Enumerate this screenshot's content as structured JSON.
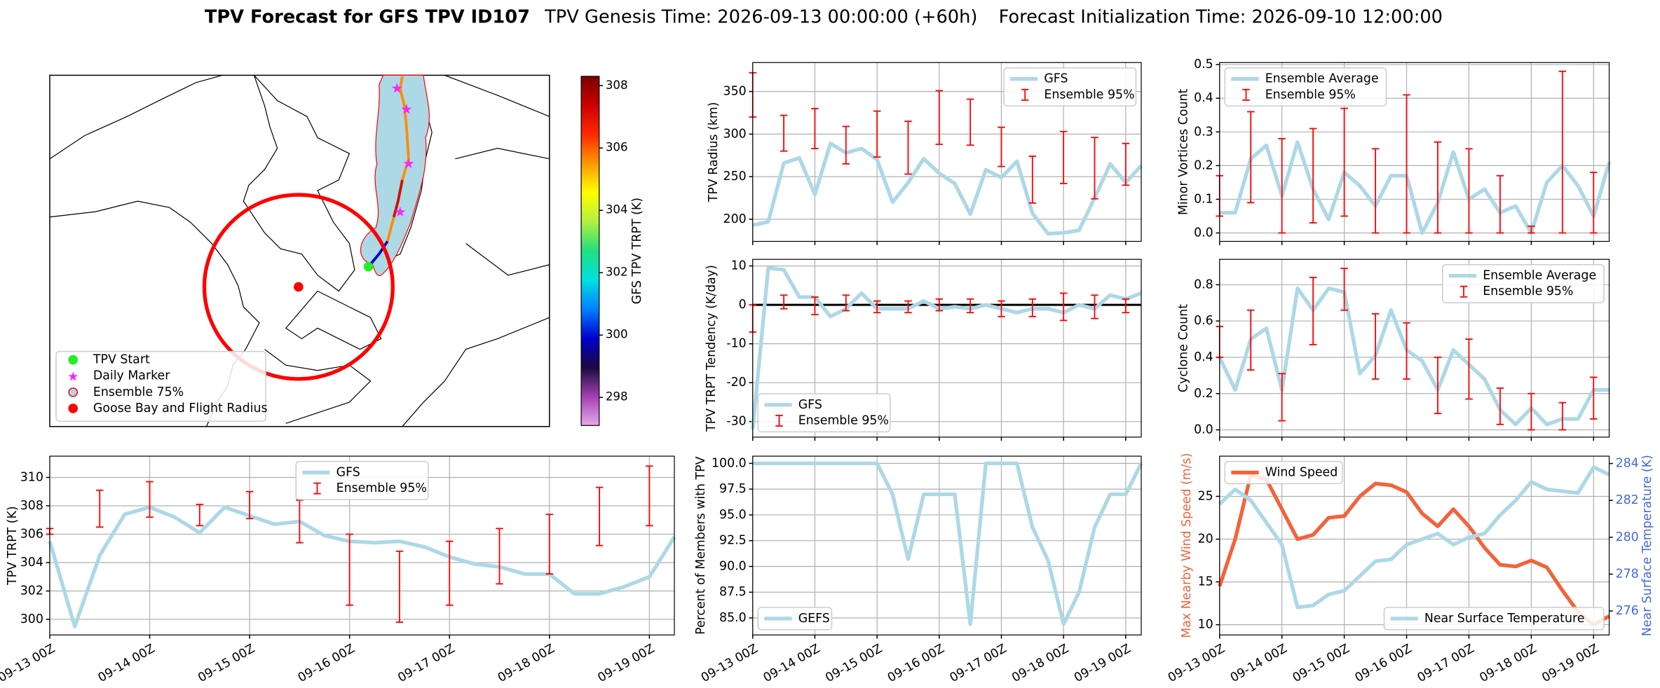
{
  "suptitle": [
    "TPV Forecast for GFS TPV ID107",
    "TPV Genesis Time: 2026-09-13 00:00:00 (+60h)",
    "Forecast Initialization Time: 2026-09-10 12:00:00"
  ],
  "chart_data": [
    {
      "type": "map",
      "legend": [
        {
          "name": "TPV Start",
          "color": "#22ee22",
          "marker": "circle"
        },
        {
          "name": "Daily Marker",
          "color": "#ff22ff",
          "marker": "star"
        },
        {
          "name": "Ensemble 75%",
          "color": "#add8e6",
          "marker": "ring"
        },
        {
          "name": "Goose Bay and Flight Radius",
          "color": "red",
          "marker": "circle"
        }
      ],
      "colorbar": {
        "label": "GFS TPV TRPT (K)",
        "lim": [
          297.1,
          308.3
        ],
        "ticks": [
          298,
          300,
          302,
          304,
          306,
          308
        ],
        "colormap": [
          "#e9a8ec",
          "#a040b0",
          "#1a0a40",
          "#0000cc",
          "#0080ff",
          "#00e0e0",
          "#20e080",
          "#b0f040",
          "#ffff00",
          "#ff9900",
          "#ff2a00",
          "#cc0000",
          "#7a0000"
        ]
      }
    },
    {
      "type": "line",
      "ylabel": "TPV TRPT (K)",
      "grid": true,
      "legend": "upper center",
      "show_xticklabels": true,
      "x": [
        "09-13 00Z",
        "09-13 06Z",
        "09-13 12Z",
        "09-13 18Z",
        "09-14 00Z",
        "09-14 06Z",
        "09-14 12Z",
        "09-14 18Z",
        "09-15 00Z",
        "09-15 06Z",
        "09-15 12Z",
        "09-15 18Z",
        "09-16 00Z",
        "09-16 06Z",
        "09-16 12Z",
        "09-16 18Z",
        "09-17 00Z",
        "09-17 06Z",
        "09-17 12Z",
        "09-17 18Z",
        "09-18 00Z",
        "09-18 06Z",
        "09-18 12Z",
        "09-18 18Z",
        "09-19 00Z",
        "09-19 06Z"
      ],
      "xticks": [
        "09-13 00Z",
        "09-14 00Z",
        "09-15 00Z",
        "09-16 00Z",
        "09-17 00Z",
        "09-18 00Z",
        "09-19 00Z"
      ],
      "ylim": [
        298.9,
        311.5
      ],
      "yticks": [
        300,
        302,
        304,
        306,
        308,
        310
      ],
      "series": [
        {
          "name": "GFS",
          "color": "#add8e6",
          "values": [
            305.5,
            299.5,
            304.5,
            307.4,
            307.9,
            307.2,
            306.1,
            307.9,
            307.3,
            306.7,
            306.9,
            305.9,
            305.5,
            305.4,
            305.5,
            305.1,
            304.4,
            303.9,
            303.7,
            303.2,
            303.2,
            301.8,
            301.8,
            302.3,
            303.0,
            305.8
          ]
        },
        {
          "name": "Ensemble 95%",
          "color": "red",
          "type": "errorbar",
          "low": [
            306.0,
            null,
            306.5,
            null,
            307.2,
            null,
            306.6,
            null,
            307.1,
            null,
            305.4,
            null,
            301.0,
            null,
            299.8,
            null,
            301.0,
            null,
            302.5,
            null,
            303.2,
            null,
            305.2,
            null,
            306.6,
            null
          ],
          "high": [
            306.4,
            null,
            309.1,
            null,
            309.7,
            null,
            308.1,
            null,
            309.0,
            null,
            308.4,
            null,
            306.0,
            null,
            304.8,
            null,
            305.5,
            null,
            306.4,
            null,
            307.4,
            null,
            309.3,
            null,
            310.8,
            null
          ]
        }
      ]
    },
    {
      "type": "line",
      "ylabel": "TPV Radius (km)",
      "grid": true,
      "legend": "upper right",
      "show_xticklabels": false,
      "x": [
        "09-13 00Z",
        "09-13 06Z",
        "09-13 12Z",
        "09-13 18Z",
        "09-14 00Z",
        "09-14 06Z",
        "09-14 12Z",
        "09-14 18Z",
        "09-15 00Z",
        "09-15 06Z",
        "09-15 12Z",
        "09-15 18Z",
        "09-16 00Z",
        "09-16 06Z",
        "09-16 12Z",
        "09-16 18Z",
        "09-17 00Z",
        "09-17 06Z",
        "09-17 12Z",
        "09-17 18Z",
        "09-18 00Z",
        "09-18 06Z",
        "09-18 12Z",
        "09-18 18Z",
        "09-19 00Z",
        "09-19 06Z"
      ],
      "xticks": [
        "09-13 00Z",
        "09-14 00Z",
        "09-15 00Z",
        "09-16 00Z",
        "09-17 00Z",
        "09-18 00Z",
        "09-19 00Z"
      ],
      "ylim": [
        174,
        384
      ],
      "yticks": [
        200,
        250,
        300,
        350
      ],
      "series": [
        {
          "name": "GFS",
          "color": "#add8e6",
          "values": [
            193,
            197,
            266,
            272,
            229,
            289,
            278,
            283,
            270,
            220,
            243,
            271,
            254,
            242,
            206,
            258,
            249,
            268,
            207,
            183,
            184,
            187,
            225,
            265,
            243,
            263
          ]
        },
        {
          "name": "Ensemble 95%",
          "color": "red",
          "type": "errorbar",
          "low": [
            320,
            null,
            280,
            null,
            283,
            null,
            265,
            null,
            273,
            null,
            253,
            null,
            288,
            null,
            287,
            null,
            262,
            null,
            219,
            null,
            242,
            null,
            224,
            null,
            240,
            null
          ],
          "high": [
            372,
            null,
            322,
            null,
            330,
            null,
            309,
            null,
            327,
            null,
            315,
            null,
            351,
            null,
            341,
            null,
            308,
            null,
            274,
            null,
            303,
            null,
            296,
            null,
            289,
            null
          ]
        }
      ]
    },
    {
      "type": "line",
      "ylabel": "TPV TRPT Tendency (K/day)",
      "grid": true,
      "legend": "lower left",
      "show_xticklabels": false,
      "hline": 0,
      "x": [
        "09-13 00Z",
        "09-13 06Z",
        "09-13 12Z",
        "09-13 18Z",
        "09-14 00Z",
        "09-14 06Z",
        "09-14 12Z",
        "09-14 18Z",
        "09-15 00Z",
        "09-15 06Z",
        "09-15 12Z",
        "09-15 18Z",
        "09-16 00Z",
        "09-16 06Z",
        "09-16 12Z",
        "09-16 18Z",
        "09-17 00Z",
        "09-17 06Z",
        "09-17 12Z",
        "09-17 18Z",
        "09-18 00Z",
        "09-18 06Z",
        "09-18 12Z",
        "09-18 18Z",
        "09-19 00Z",
        "09-19 06Z"
      ],
      "xticks": [
        "09-13 00Z",
        "09-14 00Z",
        "09-15 00Z",
        "09-16 00Z",
        "09-17 00Z",
        "09-18 00Z",
        "09-19 00Z"
      ],
      "ylim": [
        -34,
        11.7
      ],
      "yticks": [
        -30,
        -20,
        -10,
        0,
        10
      ],
      "series": [
        {
          "name": "GFS",
          "color": "#add8e6",
          "values": [
            -32,
            9.5,
            9,
            2,
            2,
            -3,
            -1,
            3,
            -1,
            -1,
            -1,
            1,
            -1,
            -0.5,
            -1,
            0,
            -1,
            -2,
            -1,
            -1,
            -2,
            0,
            -1,
            2.5,
            1.5,
            3
          ]
        },
        {
          "name": "Ensemble 95%",
          "color": "red",
          "type": "errorbar",
          "low": [
            -7,
            null,
            -1,
            null,
            -2.5,
            null,
            -1.5,
            null,
            -2,
            null,
            -2,
            null,
            -1.5,
            null,
            -2,
            null,
            -3,
            null,
            -3,
            null,
            -4,
            null,
            -3.5,
            null,
            -2,
            null
          ],
          "high": [
            0,
            null,
            2.5,
            null,
            2,
            null,
            2.5,
            null,
            1,
            null,
            1,
            null,
            1.5,
            null,
            1.5,
            null,
            1,
            null,
            1.5,
            null,
            3,
            null,
            2.5,
            null,
            1.5,
            null
          ]
        }
      ]
    },
    {
      "type": "line",
      "ylabel": "Percent of Members with TPV",
      "grid": true,
      "legend": "lower left",
      "show_xticklabels": true,
      "x": [
        "09-13 00Z",
        "09-13 06Z",
        "09-13 12Z",
        "09-13 18Z",
        "09-14 00Z",
        "09-14 06Z",
        "09-14 12Z",
        "09-14 18Z",
        "09-15 00Z",
        "09-15 06Z",
        "09-15 12Z",
        "09-15 18Z",
        "09-16 00Z",
        "09-16 06Z",
        "09-16 12Z",
        "09-16 18Z",
        "09-17 00Z",
        "09-17 06Z",
        "09-17 12Z",
        "09-17 18Z",
        "09-18 00Z",
        "09-18 06Z",
        "09-18 12Z",
        "09-18 18Z",
        "09-19 00Z",
        "09-19 06Z"
      ],
      "xticks": [
        "09-13 00Z",
        "09-14 00Z",
        "09-15 00Z",
        "09-16 00Z",
        "09-17 00Z",
        "09-18 00Z",
        "09-19 00Z"
      ],
      "ylim": [
        83.35,
        100.7
      ],
      "yticks": [
        {
          "value": 85,
          "label": "85.0"
        },
        87.5,
        {
          "value": 90,
          "label": "90.0"
        },
        92.5,
        {
          "value": 95,
          "label": "95.0"
        },
        97.5,
        {
          "value": 100,
          "label": "100.0"
        }
      ],
      "series": [
        {
          "name": "GEFS",
          "color": "#add8e6",
          "values": [
            100,
            100,
            100,
            100,
            100,
            100,
            100,
            100,
            100,
            97,
            90.7,
            97,
            97,
            97,
            84.4,
            100,
            100,
            100,
            93.8,
            90.6,
            84.4,
            87.5,
            93.8,
            97,
            97,
            100
          ]
        }
      ]
    },
    {
      "type": "line",
      "ylabel": "Minor Vortices Count",
      "grid": true,
      "legend": "upper left",
      "show_xticklabels": false,
      "x": [
        "09-13 00Z",
        "09-13 06Z",
        "09-13 12Z",
        "09-13 18Z",
        "09-14 00Z",
        "09-14 06Z",
        "09-14 12Z",
        "09-14 18Z",
        "09-15 00Z",
        "09-15 06Z",
        "09-15 12Z",
        "09-15 18Z",
        "09-16 00Z",
        "09-16 06Z",
        "09-16 12Z",
        "09-16 18Z",
        "09-17 00Z",
        "09-17 06Z",
        "09-17 12Z",
        "09-17 18Z",
        "09-18 00Z",
        "09-18 06Z",
        "09-18 12Z",
        "09-18 18Z",
        "09-19 00Z",
        "09-19 06Z"
      ],
      "xticks": [
        "09-13 00Z",
        "09-14 00Z",
        "09-15 00Z",
        "09-16 00Z",
        "09-17 00Z",
        "09-18 00Z",
        "09-19 00Z"
      ],
      "ylim": [
        -0.025,
        0.506
      ],
      "yticks": [
        {
          "value": 0,
          "label": "0.0"
        },
        0.1,
        0.2,
        0.3,
        0.4,
        0.5
      ],
      "series": [
        {
          "name": "Ensemble Average",
          "color": "#add8e6",
          "values": [
            0.06,
            0.06,
            0.22,
            0.26,
            0.11,
            0.27,
            0.13,
            0.04,
            0.18,
            0.14,
            0.08,
            0.17,
            0.17,
            0,
            0.09,
            0.24,
            0.1,
            0.13,
            0.06,
            0.08,
            0,
            0.15,
            0.2,
            0.14,
            0.05,
            0.21
          ]
        },
        {
          "name": "Ensemble 95%",
          "color": "red",
          "type": "errorbar",
          "low": [
            0.05,
            null,
            0.09,
            null,
            0,
            null,
            0.03,
            null,
            0.05,
            null,
            0,
            null,
            0,
            null,
            0,
            null,
            0,
            null,
            0,
            null,
            0,
            null,
            0,
            null,
            0,
            null
          ],
          "high": [
            0.17,
            null,
            0.36,
            null,
            0.28,
            null,
            0.31,
            null,
            0.37,
            null,
            0.25,
            null,
            0.41,
            null,
            0.27,
            null,
            0.25,
            null,
            0.17,
            null,
            0.02,
            null,
            0.48,
            null,
            0.18,
            null
          ]
        }
      ]
    },
    {
      "type": "line",
      "ylabel": "Cyclone Count",
      "grid": true,
      "legend": "upper right",
      "show_xticklabels": false,
      "x": [
        "09-13 00Z",
        "09-13 06Z",
        "09-13 12Z",
        "09-13 18Z",
        "09-14 00Z",
        "09-14 06Z",
        "09-14 12Z",
        "09-14 18Z",
        "09-15 00Z",
        "09-15 06Z",
        "09-15 12Z",
        "09-15 18Z",
        "09-16 00Z",
        "09-16 06Z",
        "09-16 12Z",
        "09-16 18Z",
        "09-17 00Z",
        "09-17 06Z",
        "09-17 12Z",
        "09-17 18Z",
        "09-18 00Z",
        "09-18 06Z",
        "09-18 12Z",
        "09-18 18Z",
        "09-19 00Z",
        "09-19 06Z"
      ],
      "xticks": [
        "09-13 00Z",
        "09-14 00Z",
        "09-15 00Z",
        "09-16 00Z",
        "09-17 00Z",
        "09-18 00Z",
        "09-19 00Z"
      ],
      "ylim": [
        -0.04,
        0.94
      ],
      "yticks": [
        {
          "value": 0,
          "label": "0.0"
        },
        0.2,
        0.4,
        0.6,
        0.8
      ],
      "series": [
        {
          "name": "Ensemble Average",
          "color": "#add8e6",
          "values": [
            0.4,
            0.22,
            0.5,
            0.56,
            0.22,
            0.78,
            0.66,
            0.78,
            0.76,
            0.31,
            0.41,
            0.66,
            0.44,
            0.38,
            0.22,
            0.44,
            0.36,
            0.28,
            0.11,
            0.03,
            0.12,
            0.03,
            0.06,
            0.06,
            0.22,
            0.22
          ]
        },
        {
          "name": "Ensemble 95%",
          "color": "red",
          "type": "errorbar",
          "low": [
            0.4,
            null,
            0.33,
            null,
            0.05,
            null,
            0.47,
            null,
            0.66,
            null,
            0.28,
            null,
            0.28,
            null,
            0.09,
            null,
            0.17,
            null,
            0.03,
            null,
            0,
            null,
            0,
            null,
            0.06,
            null
          ],
          "high": [
            0.57,
            null,
            0.66,
            null,
            0.31,
            null,
            0.84,
            null,
            0.89,
            null,
            0.64,
            null,
            0.59,
            null,
            0.4,
            null,
            0.5,
            null,
            0.23,
            null,
            0.2,
            null,
            0.15,
            null,
            0.29,
            null
          ]
        }
      ]
    },
    {
      "type": "line",
      "ylabel": "Max Nearby Wind Speed (m/s)",
      "ylabel_color": "#f4623a",
      "y2label": "Near Surface Temperature (K)",
      "y2label_color": "#4169e1",
      "grid": true,
      "legend": "upper left",
      "show_xticklabels": true,
      "x": [
        "09-13 00Z",
        "09-13 06Z",
        "09-13 12Z",
        "09-13 18Z",
        "09-14 00Z",
        "09-14 06Z",
        "09-14 12Z",
        "09-14 18Z",
        "09-15 00Z",
        "09-15 06Z",
        "09-15 12Z",
        "09-15 18Z",
        "09-16 00Z",
        "09-16 06Z",
        "09-16 12Z",
        "09-16 18Z",
        "09-17 00Z",
        "09-17 06Z",
        "09-17 12Z",
        "09-17 18Z",
        "09-18 00Z",
        "09-18 06Z",
        "09-18 12Z",
        "09-18 18Z",
        "09-19 00Z",
        "09-19 06Z"
      ],
      "xticks": [
        "09-13 00Z",
        "09-14 00Z",
        "09-15 00Z",
        "09-16 00Z",
        "09-17 00Z",
        "09-18 00Z",
        "09-19 00Z"
      ],
      "ylim": [
        8.8,
        29.7
      ],
      "yticks": [
        10,
        15,
        20,
        25
      ],
      "y2lim": [
        274.7,
        284.4
      ],
      "y2ticks": [
        276,
        278,
        280,
        282,
        284
      ],
      "series": [
        {
          "name": "Wind Speed",
          "color": "#f4623a",
          "values": [
            14.5,
            20,
            27.5,
            27,
            23.5,
            20,
            20.5,
            22.5,
            22.7,
            25,
            26.5,
            26.3,
            25.5,
            23,
            21.5,
            23.5,
            21.5,
            19,
            17,
            16.8,
            17.5,
            16.7,
            14,
            11.5,
            10,
            11
          ]
        },
        {
          "name": "Near Surface Temperature",
          "color": "#add8e6",
          "axis": "y2",
          "legend": "lower right",
          "values": [
            281.8,
            282.6,
            282,
            280.8,
            279.6,
            276.2,
            276.3,
            276.9,
            277.1,
            277.9,
            278.7,
            278.8,
            279.6,
            279.9,
            280.2,
            279.6,
            280,
            280.2,
            281.2,
            282,
            283,
            282.6,
            282.5,
            282.4,
            283.8,
            283.4
          ]
        }
      ]
    }
  ]
}
